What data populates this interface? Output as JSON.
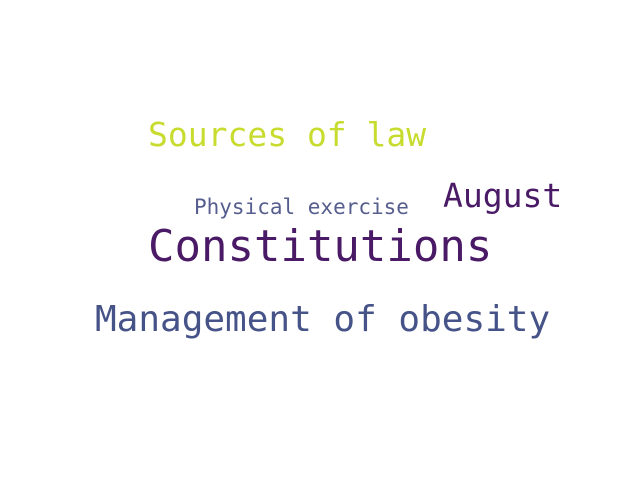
{
  "word_cloud": {
    "words": [
      {
        "id": "sources",
        "text": "Sources of law",
        "color": "#c8dc2f"
      },
      {
        "id": "august",
        "text": "August",
        "color": "#4a1a66"
      },
      {
        "id": "physical",
        "text": "Physical exercise",
        "color": "#565e8e"
      },
      {
        "id": "constitutions",
        "text": "Constitutions",
        "color": "#4a1a66"
      },
      {
        "id": "obesity",
        "text": "Management of obesity",
        "color": "#465388"
      }
    ]
  }
}
